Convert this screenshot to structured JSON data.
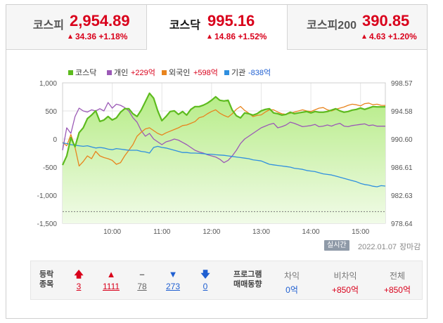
{
  "tabs": [
    {
      "name": "코스피",
      "value": "2,954.89",
      "change": "34.36",
      "rate": "+1.18%",
      "active": false
    },
    {
      "name": "코스닥",
      "value": "995.16",
      "change": "14.86",
      "rate": "+1.52%",
      "active": true
    },
    {
      "name": "코스피200",
      "value": "390.85",
      "change": "4.63",
      "rate": "+1.20%",
      "active": false
    }
  ],
  "legend": [
    {
      "label": "코스닥",
      "value": "",
      "color": "#5dbb1e"
    },
    {
      "label": "개인",
      "value": "+229억",
      "color": "#9b59b6"
    },
    {
      "label": "외국인",
      "value": "+598억",
      "color": "#e8841e"
    },
    {
      "label": "기관",
      "value": "-838억",
      "color": "#2f8fdf"
    }
  ],
  "colors": {
    "up": "#d9001b",
    "down": "#1f5fd1",
    "index_line": "#5dbb1e",
    "index_fill": "#b6ec86"
  },
  "chart_data": {
    "type": "line",
    "x_ticks": [
      "10:00",
      "11:00",
      "12:00",
      "13:00",
      "14:00",
      "15:00"
    ],
    "left_axis": {
      "ticks": [
        "1,000",
        "500",
        "0",
        "-500",
        "-1,000",
        "-1,500"
      ],
      "ylim": [
        -1500,
        1000
      ],
      "unit": "억"
    },
    "right_axis": {
      "ticks": [
        "998.57",
        "994.58",
        "990.60",
        "986.61",
        "982.63",
        "978.64"
      ],
      "ylim": [
        978.64,
        998.57
      ]
    },
    "reference_line": {
      "axis": "right",
      "value": 980.3,
      "style": "dashed"
    },
    "x": [
      "09:00",
      "09:05",
      "09:10",
      "09:15",
      "09:20",
      "09:25",
      "09:30",
      "09:35",
      "09:40",
      "09:45",
      "09:50",
      "09:55",
      "10:00",
      "10:05",
      "10:10",
      "10:15",
      "10:20",
      "10:25",
      "10:30",
      "10:35",
      "10:40",
      "10:45",
      "10:50",
      "10:55",
      "11:00",
      "11:05",
      "11:10",
      "11:15",
      "11:20",
      "11:25",
      "11:30",
      "11:35",
      "11:40",
      "11:45",
      "11:50",
      "11:55",
      "12:00",
      "12:05",
      "12:10",
      "12:15",
      "12:20",
      "12:25",
      "12:30",
      "12:35",
      "12:40",
      "12:45",
      "12:50",
      "12:55",
      "13:00",
      "13:05",
      "13:10",
      "13:15",
      "13:20",
      "13:25",
      "13:30",
      "13:35",
      "13:40",
      "13:45",
      "13:50",
      "13:55",
      "14:00",
      "14:05",
      "14:10",
      "14:15",
      "14:20",
      "14:25",
      "14:30",
      "14:35",
      "14:40",
      "14:45",
      "14:50",
      "14:55",
      "15:00",
      "15:05",
      "15:10",
      "15:15",
      "15:20",
      "15:25",
      "15:30"
    ],
    "series": [
      {
        "name": "코스닥",
        "axis": "right",
        "values": [
          986.9,
          988.2,
          990.8,
          989.5,
          991.5,
          992.2,
          993.5,
          994.0,
          994.6,
          993.1,
          993.3,
          993.8,
          993.3,
          993.6,
          994.4,
          994.9,
          994.9,
          994.2,
          993.8,
          994.7,
          995.9,
          997.1,
          996.4,
          994.6,
          993.2,
          993.8,
          994.5,
          994.6,
          994.1,
          994.5,
          994.0,
          994.8,
          995.2,
          995.2,
          995.4,
          995.7,
          996.1,
          996.6,
          996.1,
          996.0,
          996.1,
          994.7,
          993.9,
          993.6,
          994.3,
          994.2,
          994.0,
          994.2,
          994.6,
          994.8,
          994.9,
          994.3,
          994.2,
          994.0,
          994.1,
          994.4,
          994.2,
          994.3,
          994.4,
          994.5,
          994.3,
          994.5,
          994.4,
          994.4,
          994.5,
          994.7,
          994.9,
          994.6,
          994.4,
          994.5,
          994.7,
          994.8,
          995.0,
          994.8,
          995.0,
          995.2,
          995.16,
          995.16,
          995.16
        ]
      },
      {
        "name": "개인",
        "axis": "left",
        "values": [
          -200,
          200,
          100,
          400,
          550,
          500,
          480,
          520,
          500,
          540,
          500,
          650,
          550,
          620,
          600,
          560,
          500,
          380,
          300,
          150,
          50,
          100,
          0,
          -50,
          -100,
          -50,
          -30,
          0,
          -20,
          -60,
          -100,
          -150,
          -200,
          -230,
          -250,
          -280,
          -300,
          -320,
          -360,
          -420,
          -380,
          -300,
          -200,
          -80,
          0,
          50,
          100,
          150,
          200,
          230,
          260,
          280,
          200,
          220,
          250,
          300,
          280,
          250,
          220,
          230,
          240,
          260,
          220,
          230,
          250,
          230,
          260,
          280,
          230,
          220,
          240,
          250,
          260,
          270,
          240,
          250,
          229,
          229,
          229
        ]
      },
      {
        "name": "외국인",
        "axis": "left",
        "values": [
          -60,
          -120,
          80,
          -150,
          -480,
          -400,
          -300,
          -350,
          -220,
          -300,
          -330,
          -350,
          -380,
          -450,
          -420,
          -300,
          -200,
          -100,
          50,
          120,
          180,
          200,
          150,
          100,
          70,
          110,
          140,
          170,
          200,
          240,
          250,
          280,
          310,
          380,
          400,
          450,
          490,
          520,
          460,
          420,
          390,
          450,
          530,
          580,
          510,
          460,
          400,
          420,
          430,
          480,
          520,
          520,
          480,
          450,
          440,
          460,
          480,
          500,
          520,
          500,
          490,
          520,
          550,
          560,
          520,
          500,
          530,
          550,
          570,
          600,
          620,
          610,
          590,
          630,
          640,
          610,
          620,
          600,
          598
        ]
      },
      {
        "name": "기관",
        "axis": "left",
        "values": [
          -70,
          -80,
          -100,
          -110,
          -120,
          -130,
          -120,
          -140,
          -160,
          -150,
          -160,
          -180,
          -190,
          -170,
          -180,
          -190,
          -200,
          -200,
          -200,
          -220,
          -230,
          -250,
          -150,
          -130,
          -150,
          -160,
          -180,
          -200,
          -220,
          -240,
          -240,
          -250,
          -250,
          -255,
          -260,
          -270,
          -270,
          -280,
          -285,
          -290,
          -300,
          -310,
          -320,
          -330,
          -340,
          -350,
          -370,
          -380,
          -390,
          -420,
          -450,
          -460,
          -470,
          -480,
          -490,
          -500,
          -520,
          -530,
          -540,
          -560,
          -570,
          -580,
          -600,
          -620,
          -630,
          -640,
          -660,
          -680,
          -700,
          -720,
          -740,
          -760,
          -790,
          -810,
          -820,
          -840,
          -850,
          -830,
          -838
        ]
      }
    ]
  },
  "footer": {
    "realtime_label": "실시간",
    "date": "2022.01.07",
    "status": "장마감"
  },
  "breadth": {
    "title_line1": "등락",
    "title_line2": "종목",
    "items": [
      {
        "icon": "upper-limit-arrow",
        "glyph": "🡅",
        "count": "3",
        "tone": "red"
      },
      {
        "icon": "rise-triangle",
        "glyph": "▲",
        "count": "1111",
        "tone": "red"
      },
      {
        "icon": "unchanged-dash",
        "glyph": "–",
        "count": "78",
        "tone": "gray"
      },
      {
        "icon": "fall-triangle",
        "glyph": "▼",
        "count": "273",
        "tone": "blue"
      },
      {
        "icon": "lower-limit-arrow",
        "glyph": "🡇",
        "count": "0",
        "tone": "blue"
      }
    ]
  },
  "program": {
    "title_line1": "프로그램",
    "title_line2": "매매동향",
    "columns": [
      {
        "label": "차익",
        "value": "0억",
        "tone": "blue"
      },
      {
        "label": "비차익",
        "value": "+850억",
        "tone": "red"
      },
      {
        "label": "전체",
        "value": "+850억",
        "tone": "red"
      }
    ]
  }
}
